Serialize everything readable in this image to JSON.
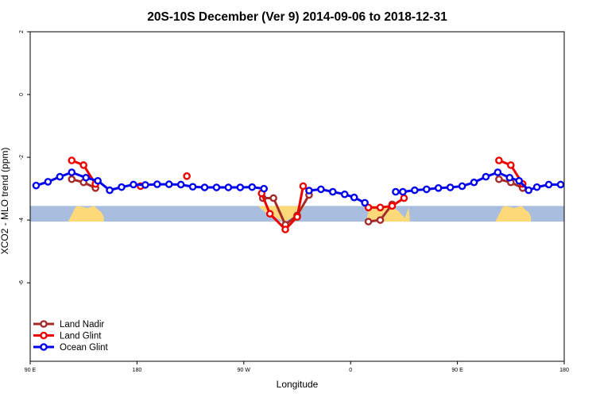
{
  "chart_data": {
    "type": "line",
    "title": "20S-10S December (Ver 9)   2014-09-06 to 2018-12-31",
    "xlabel": "Longitude",
    "ylabel": "XCO2 - MLO trend (ppm)",
    "xlim": [
      90,
      450
    ],
    "ylim": [
      -8.5,
      2
    ],
    "x_ticks": [
      {
        "value": 90,
        "label": "90 E"
      },
      {
        "value": 180,
        "label": "180"
      },
      {
        "value": 270,
        "label": "90 W"
      },
      {
        "value": 360,
        "label": "0"
      },
      {
        "value": 450,
        "label": "90 E"
      },
      {
        "value": 540,
        "label": "180"
      }
    ],
    "y_ticks": [
      {
        "value": 2,
        "label": "2"
      },
      {
        "value": 0,
        "label": "0"
      },
      {
        "value": -2,
        "label": "-2"
      },
      {
        "value": -4,
        "label": "-4"
      },
      {
        "value": -6,
        "label": "-6"
      }
    ],
    "xlim_display": [
      90,
      540
    ],
    "land_band": {
      "y_top": -3.55,
      "y_bottom": -4.05,
      "ocean_color": "#a9bedf",
      "land_color": "#fdd97a"
    },
    "land_segments": [
      {
        "x": [
          122,
          124,
          126,
          128,
          130,
          134,
          138,
          144,
          148,
          150,
          152,
          152
        ],
        "y": [
          -4.05,
          -3.9,
          -3.75,
          -3.6,
          -3.55,
          -3.58,
          -3.62,
          -3.55,
          -3.7,
          -3.75,
          -3.9,
          -4.05
        ]
      },
      {
        "x": [
          282,
          288,
          296,
          304,
          312,
          318,
          320,
          322
        ],
        "y": [
          -3.55,
          -3.75,
          -3.9,
          -4.05,
          -3.9,
          -3.75,
          -3.62,
          -3.55
        ]
      },
      {
        "x": [
          373,
          374,
          376,
          384,
          392,
          400,
          405,
          408
        ],
        "y": [
          -4.05,
          -3.9,
          -3.55,
          -3.55,
          -3.55,
          -3.7,
          -3.9,
          -4.05
        ]
      },
      {
        "x": [
          405,
          407,
          409,
          410
        ],
        "y": [
          -4.05,
          -3.8,
          -3.6,
          -4.05
        ]
      },
      {
        "x": [
          482,
          484,
          486,
          488,
          490,
          494,
          498,
          504,
          508,
          510,
          512,
          512
        ],
        "y": [
          -4.05,
          -3.9,
          -3.75,
          -3.6,
          -3.55,
          -3.58,
          -3.62,
          -3.55,
          -3.7,
          -3.75,
          -3.9,
          -4.05
        ]
      }
    ],
    "series": [
      {
        "name": "Land Nadir",
        "color": "#a52a2a",
        "segments": [
          {
            "x": [
              125,
              135,
              145
            ],
            "y": [
              -2.7,
              -2.8,
              -2.98
            ]
          },
          {
            "x": [
              286,
              295,
              305,
              315,
              325
            ],
            "y": [
              -3.3,
              -3.3,
              -4.15,
              -3.85,
              -3.2
            ]
          },
          {
            "x": [
              375,
              385,
              395
            ],
            "y": [
              -4.05,
              -4.0,
              -3.5
            ]
          },
          {
            "x": [
              485,
              495,
              505
            ],
            "y": [
              -2.7,
              -2.8,
              -2.98
            ]
          }
        ]
      },
      {
        "name": "Land Glint",
        "color": "#ee0000",
        "segments": [
          {
            "x": [
              125,
              135,
              145
            ],
            "y": [
              -2.1,
              -2.25,
              -2.85
            ]
          },
          {
            "x": [
              183
            ],
            "y": [
              -2.92
            ]
          },
          {
            "x": [
              222
            ],
            "y": [
              -2.6
            ]
          },
          {
            "x": [
              285,
              292,
              305,
              315,
              320
            ],
            "y": [
              -3.15,
              -3.8,
              -4.3,
              -3.9,
              -2.92
            ]
          },
          {
            "x": [
              375,
              385,
              395,
              405
            ],
            "y": [
              -3.6,
              -3.6,
              -3.55,
              -3.3
            ]
          },
          {
            "x": [
              485,
              495,
              505
            ],
            "y": [
              -2.1,
              -2.25,
              -2.85
            ]
          }
        ]
      },
      {
        "name": "Ocean Glint",
        "color": "#0000ee",
        "segments": [
          {
            "x": [
              95,
              105,
              115,
              125,
              137,
              147,
              157,
              167,
              177,
              187,
              197,
              207,
              217,
              227,
              237,
              247,
              257,
              267,
              277,
              287
            ],
            "y": [
              -2.9,
              -2.78,
              -2.62,
              -2.48,
              -2.65,
              -2.75,
              -3.05,
              -2.95,
              -2.87,
              -2.88,
              -2.86,
              -2.86,
              -2.87,
              -2.94,
              -2.96,
              -2.96,
              -2.96,
              -2.96,
              -2.95,
              -3.0
            ]
          },
          {
            "x": [
              325,
              335,
              345,
              355,
              363,
              372
            ],
            "y": [
              -3.06,
              -3.02,
              -3.1,
              -3.18,
              -3.28,
              -3.45
            ]
          },
          {
            "x": [
              398,
              404,
              414,
              424,
              434,
              444,
              454,
              464,
              474,
              484,
              494,
              502,
              510,
              517,
              527,
              537
            ],
            "y": [
              -3.1,
              -3.1,
              -3.05,
              -3.02,
              -2.98,
              -2.96,
              -2.92,
              -2.8,
              -2.62,
              -2.48,
              -2.65,
              -2.75,
              -3.05,
              -2.95,
              -2.87,
              -2.87
            ]
          }
        ]
      }
    ],
    "legend": {
      "placement": "bottom-left",
      "entries": [
        "Land Nadir",
        "Land Glint",
        "Ocean Glint"
      ]
    },
    "grid": false
  }
}
